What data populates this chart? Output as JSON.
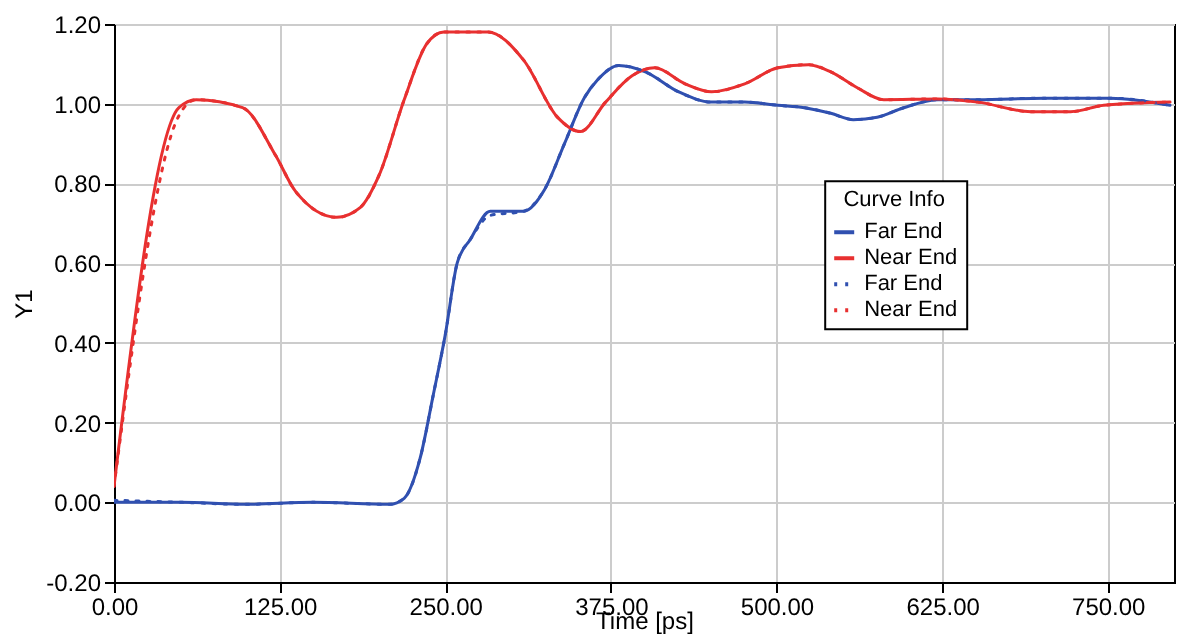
{
  "chart_data": {
    "type": "line",
    "xlabel": "Time [ps]",
    "ylabel": "Y1",
    "legend_title": "Curve Info",
    "xlim": [
      0,
      800
    ],
    "ylim": [
      -0.2,
      1.2
    ],
    "xticks": [
      {
        "value": 0,
        "label": "0.00"
      },
      {
        "value": 125,
        "label": "125.00"
      },
      {
        "value": 250,
        "label": "250.00"
      },
      {
        "value": 375,
        "label": "375.00"
      },
      {
        "value": 500,
        "label": "500.00"
      },
      {
        "value": 625,
        "label": "625.00"
      },
      {
        "value": 750,
        "label": "750.00"
      }
    ],
    "yticks": [
      {
        "value": -0.2,
        "label": "-0.20"
      },
      {
        "value": 0,
        "label": "0.00"
      },
      {
        "value": 0.2,
        "label": "0.20"
      },
      {
        "value": 0.4,
        "label": "0.40"
      },
      {
        "value": 0.6,
        "label": "0.60"
      },
      {
        "value": 0.8,
        "label": "0.80"
      },
      {
        "value": 1,
        "label": "1.00"
      },
      {
        "value": 1.2,
        "label": "1.20"
      }
    ],
    "grid": true,
    "legend": "right",
    "series": [
      {
        "name": "Far End",
        "color": "#3050b0",
        "line_style": "solid",
        "x": [
          0,
          50,
          100,
          150,
          208,
          219,
          231,
          241,
          250,
          259,
          269,
          284,
          309,
          325,
          340,
          355,
          365,
          381,
          401,
          426,
          451,
          476,
          501,
          521,
          541,
          558,
          576,
          596,
          622,
          652,
          702,
          752,
          797
        ],
        "values": [
          0,
          0,
          -0.005,
          0,
          -0.005,
          0.01,
          0.11,
          0.27,
          0.42,
          0.6,
          0.66,
          0.73,
          0.73,
          0.785,
          0.9,
          1.015,
          1.06,
          1.096,
          1.08,
          1.03,
          1.004,
          1.004,
          0.996,
          0.99,
          0.976,
          0.96,
          0.966,
          0.99,
          1.01,
          1.01,
          1.014,
          1.014,
          0.996
        ]
      },
      {
        "name": "Near End",
        "color": "#e83030",
        "line_style": "solid",
        "x": [
          0,
          49,
          62,
          97,
          122,
          137,
          168,
          186,
          200,
          219,
          236,
          249,
          282,
          309,
          335,
          352,
          371,
          391,
          408,
          431,
          451,
          476,
          501,
          524,
          541,
          561,
          581,
          622,
          652,
          692,
          722,
          747,
          797
        ],
        "values": [
          0.04,
          0.99,
          1.01,
          0.99,
          0.87,
          0.78,
          0.715,
          0.74,
          0.82,
          1.01,
          1.15,
          1.18,
          1.18,
          1.11,
          0.965,
          0.93,
          1.004,
          1.07,
          1.09,
          1.05,
          1.03,
          1.05,
          1.09,
          1.098,
          1.08,
          1.04,
          1.01,
          1.012,
          1.004,
          0.98,
          0.98,
          0.996,
          1.004
        ]
      },
      {
        "name": "Far End",
        "color": "#3050b0",
        "line_style": "dotted",
        "x": [
          0,
          50,
          100,
          150,
          208,
          219,
          231,
          241,
          250,
          259,
          269,
          284,
          309,
          325,
          340,
          355,
          365,
          381,
          401,
          426,
          451,
          476,
          501,
          521,
          541,
          558,
          576,
          596,
          622,
          652,
          702,
          752,
          797
        ],
        "values": [
          0.005,
          0,
          -0.005,
          0,
          -0.005,
          0.01,
          0.11,
          0.27,
          0.42,
          0.6,
          0.66,
          0.72,
          0.73,
          0.785,
          0.9,
          1.015,
          1.06,
          1.096,
          1.08,
          1.03,
          1.004,
          1.004,
          0.996,
          0.99,
          0.976,
          0.96,
          0.966,
          0.99,
          1.01,
          1.01,
          1.014,
          1.014,
          0.996
        ]
      },
      {
        "name": "Near End",
        "color": "#e83030",
        "line_style": "dotted",
        "x": [
          0,
          49,
          62,
          97,
          122,
          137,
          168,
          186,
          200,
          219,
          236,
          249,
          282,
          309,
          335,
          352,
          371,
          391,
          408,
          431,
          451,
          476,
          501,
          524,
          541,
          561,
          581,
          622,
          652,
          692,
          722,
          747,
          797
        ],
        "values": [
          0.04,
          0.97,
          1.01,
          0.99,
          0.87,
          0.78,
          0.715,
          0.74,
          0.82,
          1.01,
          1.15,
          1.18,
          1.18,
          1.11,
          0.965,
          0.93,
          1.004,
          1.07,
          1.09,
          1.05,
          1.03,
          1.05,
          1.09,
          1.098,
          1.08,
          1.04,
          1.01,
          1.012,
          1.004,
          0.98,
          0.98,
          0.996,
          1.004
        ]
      }
    ]
  }
}
